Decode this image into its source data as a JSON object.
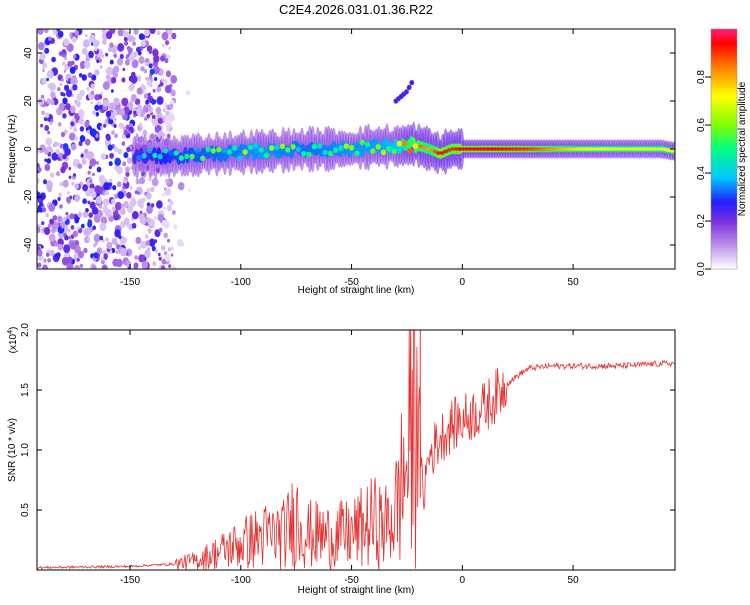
{
  "title": "C2E4.2026.031.01.36.R22",
  "chart_data": [
    {
      "type": "heatmap",
      "name": "spectrogram",
      "xlabel": "Height of straight line (km)",
      "ylabel": "Frequency (Hz)",
      "xlim": [
        -192,
        96
      ],
      "ylim": [
        -50,
        50
      ],
      "xticks": [
        -150,
        -100,
        -50,
        0,
        50
      ],
      "yticks": [
        -40,
        -20,
        0,
        20,
        40
      ],
      "colorbar": {
        "label": "Normalized spectral amplitude",
        "range": [
          0,
          1
        ],
        "ticks": [
          "0.0",
          "0.2",
          "0.4",
          "0.6",
          "0.8"
        ],
        "tick_values": [
          0.0,
          0.2,
          0.4,
          0.6,
          0.8
        ],
        "colors": [
          "#ffffff",
          "#dcc8f5",
          "#b07ae6",
          "#7a2ee0",
          "#2020ff",
          "#00c8ff",
          "#00ff80",
          "#80ff00",
          "#ffff00",
          "#ff8000",
          "#ff0000",
          "#ff2080"
        ]
      },
      "ridge": {
        "x": [
          -145,
          -130,
          -110,
          -90,
          -70,
          -50,
          -40,
          -30,
          -22,
          -15,
          -10,
          -5,
          0,
          10,
          30,
          50,
          70,
          90,
          96
        ],
        "frequency": [
          -3,
          -3,
          -2,
          -1,
          0,
          0,
          1,
          1,
          2,
          0,
          -2,
          0,
          0,
          0,
          0,
          0,
          0,
          0,
          -1
        ],
        "amplitude": [
          0.35,
          0.45,
          0.5,
          0.55,
          0.5,
          0.55,
          0.55,
          0.6,
          0.9,
          0.8,
          0.95,
          0.9,
          0.95,
          0.95,
          0.9,
          0.75,
          0.7,
          0.7,
          0.75
        ]
      },
      "branch": {
        "x": [
          -30,
          -25,
          -22
        ],
        "frequency": [
          20,
          24,
          29
        ]
      },
      "noise_region_x": [
        -192,
        -120
      ]
    },
    {
      "type": "line",
      "name": "snr",
      "xlabel": "Height of straight line (km)",
      "ylabel": "SNR (10 * v/v)",
      "exponent_label": "(x10",
      "exponent_value": "4",
      "exponent_close": ")",
      "xlim": [
        -192,
        96
      ],
      "ylim": [
        0,
        2.0
      ],
      "xticks": [
        -150,
        -100,
        -50,
        0,
        50
      ],
      "yticks": [
        0.5,
        1.0,
        1.5,
        2.0
      ],
      "ytick_labels": [
        "0.5",
        "1.0",
        "1.5",
        "2.0"
      ],
      "color": "#e83030",
      "series": [
        {
          "name": "SNR",
          "x": [
            -192,
            -150,
            -130,
            -120,
            -110,
            -100,
            -90,
            -80,
            -75,
            -70,
            -60,
            -50,
            -40,
            -35,
            -30,
            -25,
            -22,
            -20,
            -18,
            -15,
            -10,
            -5,
            0,
            5,
            10,
            15,
            20,
            25,
            30,
            40,
            50,
            70,
            90,
            96
          ],
          "y": [
            0.02,
            0.03,
            0.05,
            0.08,
            0.15,
            0.22,
            0.28,
            0.3,
            0.45,
            0.3,
            0.28,
            0.3,
            0.4,
            0.35,
            0.5,
            0.9,
            1.3,
            1.6,
            0.6,
            0.95,
            1.1,
            1.2,
            1.25,
            1.3,
            1.35,
            1.45,
            1.55,
            1.62,
            1.68,
            1.7,
            1.7,
            1.7,
            1.72,
            1.72
          ]
        }
      ]
    }
  ]
}
